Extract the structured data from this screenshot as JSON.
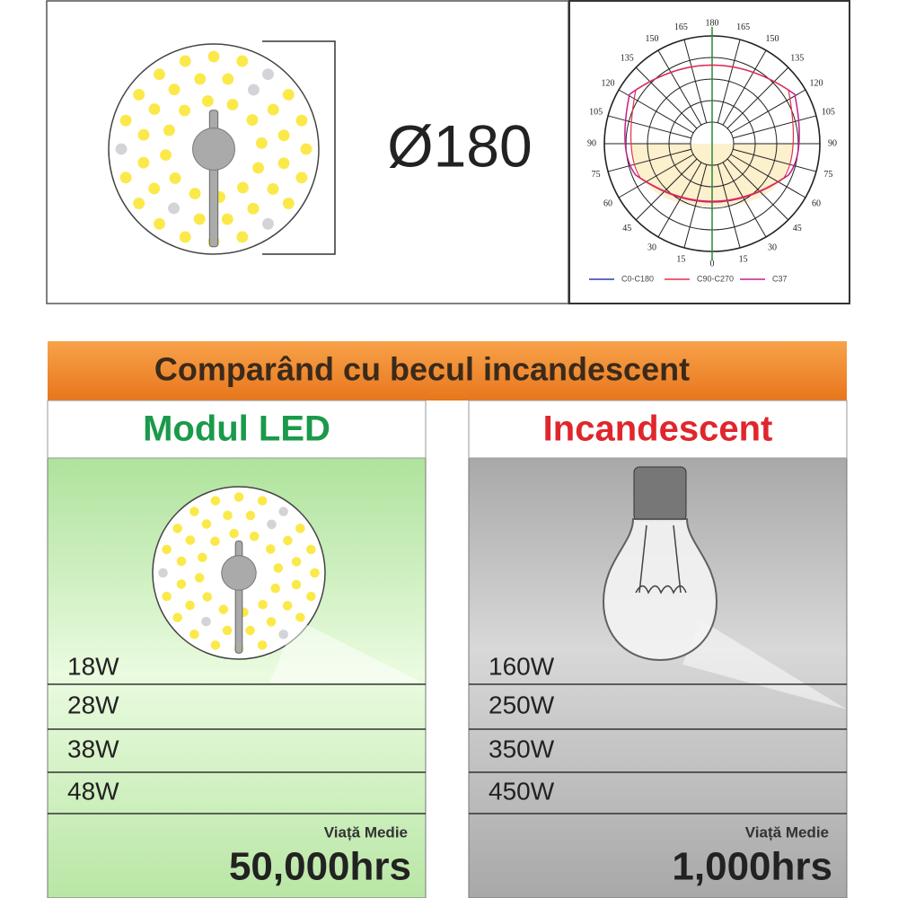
{
  "dimension": {
    "diameter": "Ø180"
  },
  "polar_diagram": {
    "top_label": 180,
    "bottom_label": 0,
    "left_labels": [
      165,
      150,
      135,
      120,
      105,
      90,
      75,
      60,
      45,
      30,
      15
    ],
    "right_labels": [
      165,
      150,
      135,
      120,
      105,
      90,
      75,
      60,
      45,
      30,
      15
    ],
    "legend": [
      {
        "name": "C0-C180",
        "color": "#2a3bb0"
      },
      {
        "name": "C90-C270",
        "color": "#e0304a"
      },
      {
        "name": "C37",
        "color": "#c0208a"
      }
    ]
  },
  "comparison": {
    "title": "Comparând cu becul incandescent",
    "columns": [
      {
        "title": "Modul LED",
        "watts": [
          "18W",
          "28W",
          "38W",
          "48W"
        ],
        "life_label": "Viață Medie",
        "life": "50,000hrs"
      },
      {
        "title": "Incandescent",
        "watts": [
          "160W",
          "250W",
          "350W",
          "450W"
        ],
        "life_label": "Viață Medie",
        "life": "1,000hrs"
      }
    ]
  }
}
